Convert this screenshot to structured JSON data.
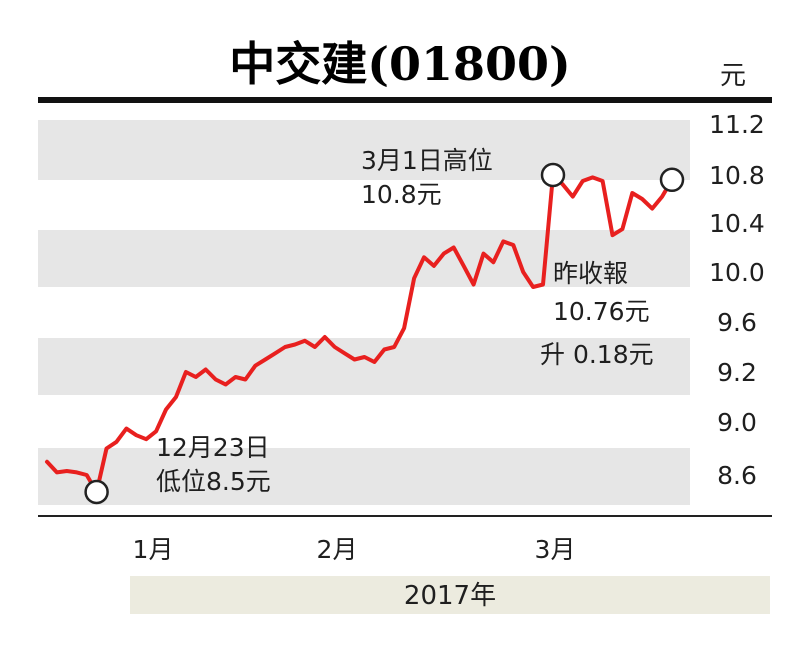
{
  "chart_data": {
    "type": "line",
    "title": "中交建(01800)",
    "unit": "元",
    "year_label": "2017年",
    "yticks": [
      "11.2",
      "10.8",
      "10.4",
      "10.0",
      "9.6",
      "9.2",
      "9.0",
      "8.6"
    ],
    "xticks": [
      "1月",
      "2月",
      "3月"
    ],
    "series": [
      {
        "color": "#e8201f",
        "values": [
          8.7,
          8.62,
          8.63,
          8.62,
          8.6,
          8.5,
          8.8,
          8.85,
          8.95,
          8.9,
          8.87,
          8.93,
          9.05,
          9.1,
          9.2,
          9.18,
          9.22,
          9.17,
          9.15,
          9.18,
          9.17,
          9.25,
          9.3,
          9.35,
          9.4,
          9.42,
          9.45,
          9.4,
          9.48,
          9.4,
          9.35,
          9.3,
          9.32,
          9.28,
          9.38,
          9.4,
          9.55,
          9.95,
          10.12,
          10.05,
          10.15,
          10.2,
          10.05,
          9.9,
          10.15,
          10.08,
          10.25,
          10.22,
          10.0,
          9.88,
          9.9,
          10.8,
          10.72,
          10.62,
          10.75,
          10.78,
          10.75,
          10.3,
          10.35,
          10.65,
          10.6,
          10.52,
          10.62,
          10.76
        ]
      }
    ],
    "annotations": {
      "high": {
        "line1": "3月1日高位",
        "line2": "10.8元"
      },
      "low": {
        "line1": "12月23日",
        "line2": "低位8.5元"
      },
      "close": {
        "line1": "昨收報",
        "line2": "10.76元",
        "line3": "升 0.18元"
      }
    }
  }
}
